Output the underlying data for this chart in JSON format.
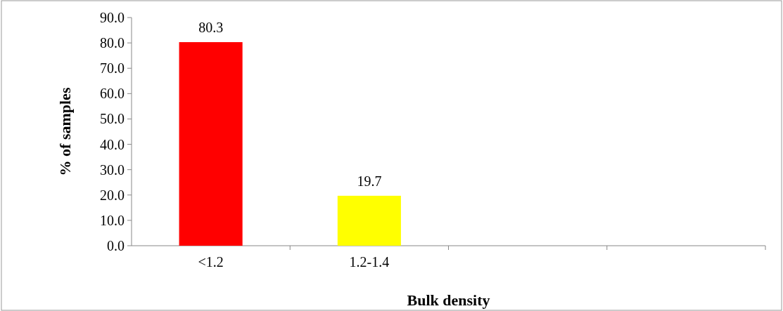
{
  "chart_data": {
    "type": "bar",
    "xlabel": "Bulk density",
    "ylabel": "% of samples",
    "categories": [
      "<1.2",
      "1.2-1.4",
      null,
      null
    ],
    "values": [
      80.3,
      19.7,
      null,
      null
    ],
    "colors": [
      "#ff0000",
      "#ffff00",
      null,
      null
    ],
    "ylim": [
      0,
      90
    ],
    "yticks": [
      {
        "value": 0,
        "label": "0.0"
      },
      {
        "value": 10,
        "label": "10.0"
      },
      {
        "value": 20,
        "label": "20.0"
      },
      {
        "value": 30,
        "label": "30.0"
      },
      {
        "value": 40,
        "label": "40.0"
      },
      {
        "value": 50,
        "label": "50.0"
      },
      {
        "value": 60,
        "label": "60.0"
      },
      {
        "value": 70,
        "label": "70.0"
      },
      {
        "value": 80,
        "label": "80.0"
      },
      {
        "value": 90,
        "label": "90.0"
      }
    ],
    "data_labels": true
  }
}
